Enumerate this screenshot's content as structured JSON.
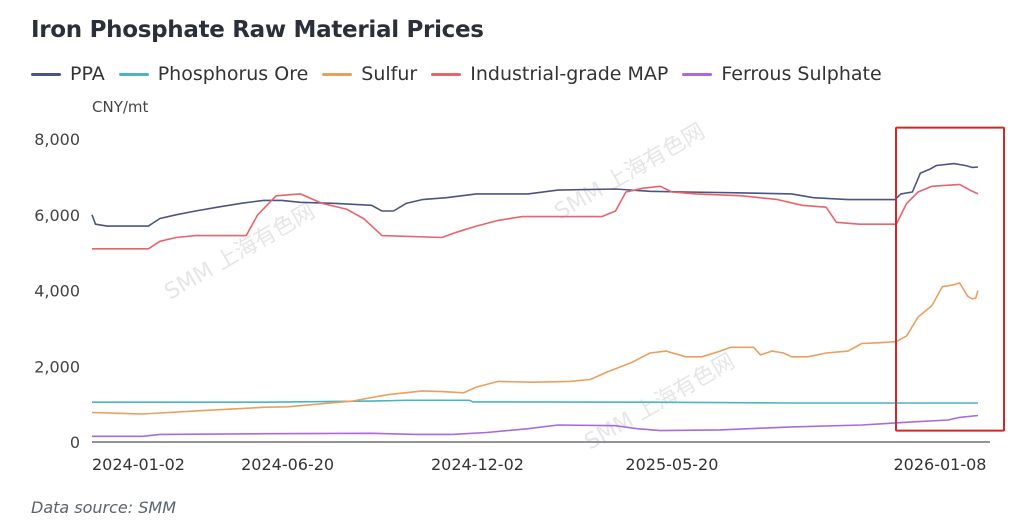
{
  "chart_data": {
    "type": "line",
    "title": "Iron Phosphate Raw Material Prices",
    "ylabel": "CNY/mt",
    "xlabel": "",
    "ylim": [
      0,
      8000
    ],
    "yticks": [
      0,
      2000,
      4000,
      6000,
      8000
    ],
    "ytick_labels": [
      "0",
      "2,000",
      "4,000",
      "6,000",
      "8,000"
    ],
    "xlim": [
      "2024-01-02",
      "2026-02-10"
    ],
    "xticks": [
      "2024-01-02",
      "2024-06-20",
      "2024-12-02",
      "2025-05-20",
      "2026-01-08"
    ],
    "grid": false,
    "legend_position": "top-left",
    "source": "Data source:  SMM",
    "watermark": "SMM 上海有色网",
    "highlight_box": {
      "x_from": "2025-11-20",
      "x_to": "2026-02-15",
      "y_from": 300,
      "y_to": 8300,
      "color": "#cc2a24"
    },
    "series": [
      {
        "name": "PPA",
        "color": "#4a5584",
        "points": [
          [
            "2024-01-02",
            6000
          ],
          [
            "2024-01-05",
            5750
          ],
          [
            "2024-01-15",
            5700
          ],
          [
            "2024-02-20",
            5700
          ],
          [
            "2024-03-01",
            5900
          ],
          [
            "2024-03-15",
            6000
          ],
          [
            "2024-04-01",
            6100
          ],
          [
            "2024-04-20",
            6200
          ],
          [
            "2024-05-10",
            6300
          ],
          [
            "2024-05-30",
            6380
          ],
          [
            "2024-06-15",
            6380
          ],
          [
            "2024-07-01",
            6330
          ],
          [
            "2024-08-01",
            6300
          ],
          [
            "2024-09-01",
            6250
          ],
          [
            "2024-09-10",
            6100
          ],
          [
            "2024-09-20",
            6100
          ],
          [
            "2024-10-01",
            6300
          ],
          [
            "2024-10-15",
            6400
          ],
          [
            "2024-11-05",
            6450
          ],
          [
            "2024-12-01",
            6550
          ],
          [
            "2025-01-15",
            6550
          ],
          [
            "2025-02-10",
            6650
          ],
          [
            "2025-04-01",
            6680
          ],
          [
            "2025-05-01",
            6620
          ],
          [
            "2025-06-01",
            6600
          ],
          [
            "2025-07-15",
            6580
          ],
          [
            "2025-09-01",
            6550
          ],
          [
            "2025-09-20",
            6450
          ],
          [
            "2025-10-20",
            6400
          ],
          [
            "2025-11-30",
            6400
          ],
          [
            "2025-12-05",
            6550
          ],
          [
            "2025-12-15",
            6600
          ],
          [
            "2025-12-22",
            7100
          ],
          [
            "2025-12-30",
            7200
          ],
          [
            "2026-01-05",
            7300
          ],
          [
            "2026-01-20",
            7350
          ],
          [
            "2026-01-30",
            7300
          ],
          [
            "2026-02-05",
            7250
          ],
          [
            "2026-02-10",
            7260
          ]
        ]
      },
      {
        "name": "Phosphorus Ore",
        "color": "#4cb3c3",
        "points": [
          [
            "2024-01-02",
            1050
          ],
          [
            "2024-06-01",
            1050
          ],
          [
            "2024-09-01",
            1080
          ],
          [
            "2024-10-01",
            1100
          ],
          [
            "2024-11-25",
            1100
          ],
          [
            "2024-11-28",
            1060
          ],
          [
            "2025-05-01",
            1050
          ],
          [
            "2025-09-01",
            1030
          ],
          [
            "2026-02-10",
            1030
          ]
        ]
      },
      {
        "name": "Sulfur",
        "color": "#e8a060",
        "points": [
          [
            "2024-01-02",
            780
          ],
          [
            "2024-02-15",
            740
          ],
          [
            "2024-04-01",
            820
          ],
          [
            "2024-06-01",
            920
          ],
          [
            "2024-06-20",
            930
          ],
          [
            "2024-08-15",
            1080
          ],
          [
            "2024-09-15",
            1250
          ],
          [
            "2024-10-15",
            1350
          ],
          [
            "2024-11-01",
            1330
          ],
          [
            "2024-11-20",
            1300
          ],
          [
            "2024-12-01",
            1450
          ],
          [
            "2024-12-20",
            1600
          ],
          [
            "2025-01-20",
            1580
          ],
          [
            "2025-02-20",
            1600
          ],
          [
            "2025-03-10",
            1650
          ],
          [
            "2025-03-25",
            1850
          ],
          [
            "2025-04-15",
            2100
          ],
          [
            "2025-05-01",
            2350
          ],
          [
            "2025-05-15",
            2400
          ],
          [
            "2025-06-01",
            2250
          ],
          [
            "2025-06-15",
            2250
          ],
          [
            "2025-07-01",
            2400
          ],
          [
            "2025-07-10",
            2500
          ],
          [
            "2025-07-20",
            2500
          ],
          [
            "2025-07-30",
            2500
          ],
          [
            "2025-08-05",
            2300
          ],
          [
            "2025-08-15",
            2400
          ],
          [
            "2025-08-25",
            2350
          ],
          [
            "2025-09-01",
            2250
          ],
          [
            "2025-09-15",
            2250
          ],
          [
            "2025-10-01",
            2350
          ],
          [
            "2025-10-20",
            2400
          ],
          [
            "2025-11-01",
            2600
          ],
          [
            "2025-11-15",
            2620
          ],
          [
            "2025-12-01",
            2650
          ],
          [
            "2025-12-10",
            2800
          ],
          [
            "2025-12-20",
            3300
          ],
          [
            "2026-01-01",
            3600
          ],
          [
            "2026-01-10",
            4100
          ],
          [
            "2026-01-20",
            4150
          ],
          [
            "2026-01-25",
            4200
          ],
          [
            "2026-02-01",
            3850
          ],
          [
            "2026-02-05",
            3780
          ],
          [
            "2026-02-08",
            3800
          ],
          [
            "2026-02-10",
            4000
          ]
        ]
      },
      {
        "name": "Industrial-grade MAP",
        "color": "#e8646c",
        "points": [
          [
            "2024-01-02",
            5100
          ],
          [
            "2024-02-20",
            5100
          ],
          [
            "2024-03-01",
            5300
          ],
          [
            "2024-03-15",
            5400
          ],
          [
            "2024-04-01",
            5450
          ],
          [
            "2024-05-01",
            5450
          ],
          [
            "2024-05-15",
            5450
          ],
          [
            "2024-05-25",
            6000
          ],
          [
            "2024-06-10",
            6500
          ],
          [
            "2024-07-01",
            6550
          ],
          [
            "2024-07-20",
            6300
          ],
          [
            "2024-08-10",
            6150
          ],
          [
            "2024-08-25",
            5900
          ],
          [
            "2024-09-10",
            5450
          ],
          [
            "2024-11-01",
            5400
          ],
          [
            "2024-11-15",
            5550
          ],
          [
            "2024-12-01",
            5700
          ],
          [
            "2024-12-20",
            5850
          ],
          [
            "2025-01-10",
            5950
          ],
          [
            "2025-03-20",
            5950
          ],
          [
            "2025-04-01",
            6100
          ],
          [
            "2025-04-10",
            6600
          ],
          [
            "2025-04-25",
            6700
          ],
          [
            "2025-05-10",
            6750
          ],
          [
            "2025-05-20",
            6600
          ],
          [
            "2025-06-10",
            6550
          ],
          [
            "2025-07-20",
            6500
          ],
          [
            "2025-08-20",
            6400
          ],
          [
            "2025-09-10",
            6250
          ],
          [
            "2025-10-01",
            6200
          ],
          [
            "2025-10-10",
            5800
          ],
          [
            "2025-10-30",
            5750
          ],
          [
            "2025-12-01",
            5750
          ],
          [
            "2025-12-10",
            6300
          ],
          [
            "2025-12-20",
            6600
          ],
          [
            "2026-01-01",
            6750
          ],
          [
            "2026-01-25",
            6800
          ],
          [
            "2026-02-03",
            6650
          ],
          [
            "2026-02-10",
            6550
          ]
        ]
      },
      {
        "name": "Ferrous Sulphate",
        "color": "#a96ae0",
        "points": [
          [
            "2024-01-02",
            150
          ],
          [
            "2024-02-15",
            150
          ],
          [
            "2024-03-01",
            200
          ],
          [
            "2024-06-01",
            220
          ],
          [
            "2024-09-01",
            230
          ],
          [
            "2024-10-10",
            200
          ],
          [
            "2024-11-10",
            200
          ],
          [
            "2024-12-10",
            250
          ],
          [
            "2025-01-15",
            350
          ],
          [
            "2025-02-10",
            450
          ],
          [
            "2025-04-01",
            430
          ],
          [
            "2025-04-20",
            350
          ],
          [
            "2025-05-10",
            300
          ],
          [
            "2025-07-01",
            320
          ],
          [
            "2025-09-01",
            400
          ],
          [
            "2025-11-01",
            450
          ],
          [
            "2025-12-15",
            530
          ],
          [
            "2026-01-15",
            580
          ],
          [
            "2026-01-25",
            650
          ],
          [
            "2026-02-10",
            700
          ]
        ]
      }
    ]
  }
}
